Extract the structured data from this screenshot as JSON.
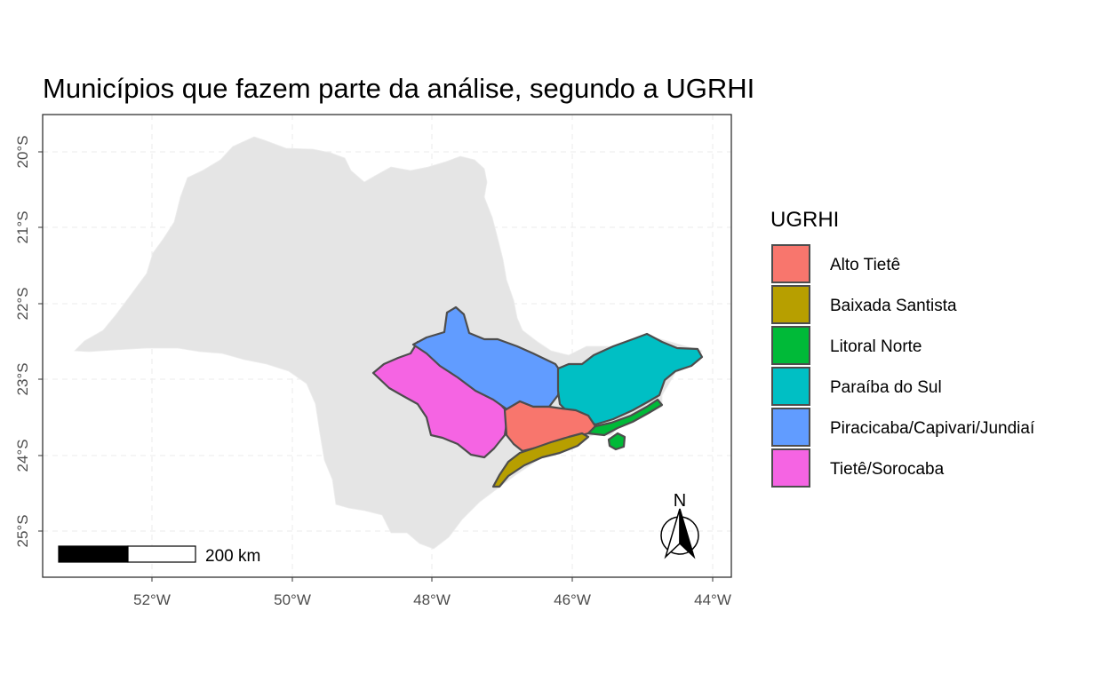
{
  "title": "Municípios que fazem parte da análise, segundo a UGRHI",
  "axes": {
    "x_ticks": [
      "52°W",
      "50°W",
      "48°W",
      "46°W",
      "44°W"
    ],
    "y_ticks": [
      "20°S",
      "21°S",
      "22°S",
      "23°S",
      "24°S",
      "25°S"
    ],
    "grid": true,
    "grid_style": "dashed"
  },
  "legend": {
    "title": "UGRHI",
    "position": "right",
    "items": [
      {
        "label": "Alto Tietê",
        "color": "#F8766D"
      },
      {
        "label": "Baixada Santista",
        "color": "#B79F00"
      },
      {
        "label": "Litoral Norte",
        "color": "#00BA38"
      },
      {
        "label": "Paraíba do Sul",
        "color": "#00BFC4"
      },
      {
        "label": "Piracicaba/Capivari/Jundiaí",
        "color": "#619CFF"
      },
      {
        "label": "Tietê/Sorocaba",
        "color": "#F564E3"
      }
    ]
  },
  "scale_bar": {
    "label": "200 km"
  },
  "north_arrow": {
    "label": "N"
  },
  "colors": {
    "background_state": "#E5E5E5",
    "region_border": "#4D4D4D",
    "panel_border": "#333333",
    "grid": "#EBEBEB"
  }
}
